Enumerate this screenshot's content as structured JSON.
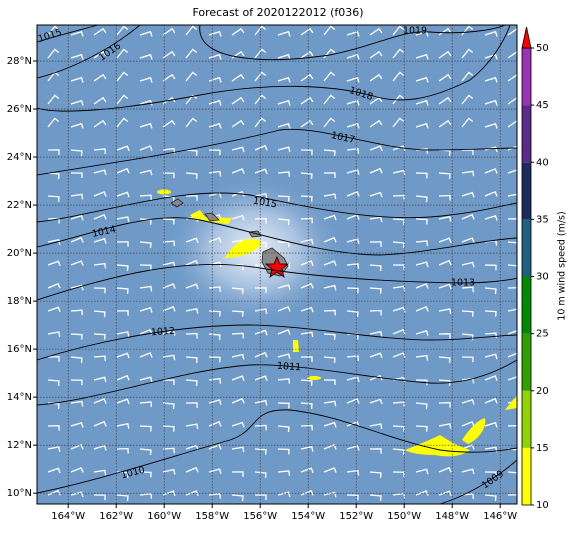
{
  "chart_data": {
    "type": "map",
    "title": "Forecast of 2020122012 (f036)",
    "xlim": [
      -165.3,
      -145.3
    ],
    "ylim": [
      9.55,
      29.5
    ],
    "xticks": [
      {
        "value": -164,
        "label": "164°W"
      },
      {
        "value": -162,
        "label": "162°W"
      },
      {
        "value": -160,
        "label": "160°W"
      },
      {
        "value": -158,
        "label": "158°W"
      },
      {
        "value": -156,
        "label": "156°W"
      },
      {
        "value": -154,
        "label": "154°W"
      },
      {
        "value": -152,
        "label": "152°W"
      },
      {
        "value": -150,
        "label": "150°W"
      },
      {
        "value": -148,
        "label": "148°W"
      },
      {
        "value": -146,
        "label": "146°W"
      }
    ],
    "yticks": [
      {
        "value": 10,
        "label": "10°N"
      },
      {
        "value": 12,
        "label": "12°N"
      },
      {
        "value": 14,
        "label": "14°N"
      },
      {
        "value": 16,
        "label": "16°N"
      },
      {
        "value": 18,
        "label": "18°N"
      },
      {
        "value": 20,
        "label": "20°N"
      },
      {
        "value": 22,
        "label": "22°N"
      },
      {
        "value": 24,
        "label": "24°N"
      },
      {
        "value": 26,
        "label": "26°N"
      },
      {
        "value": 28,
        "label": "28°N"
      }
    ],
    "grid": true,
    "contour_labels": [
      1015,
      1016,
      1019,
      1018,
      1017,
      1015,
      1014,
      1013,
      1012,
      1011,
      1010,
      1009
    ],
    "colorbar": {
      "label": "10 m wind speed (m/s)",
      "lim": [
        10,
        50
      ],
      "ticks": [
        10,
        15,
        20,
        25,
        30,
        35,
        40,
        45,
        50
      ],
      "colors": [
        "#ffff00",
        "#8fd400",
        "#2fa000",
        "#008a00",
        "#1f5f80",
        "#1b2b5c",
        "#5b2a8c",
        "#9a32b4"
      ],
      "over_color": "#ff0000"
    }
  }
}
